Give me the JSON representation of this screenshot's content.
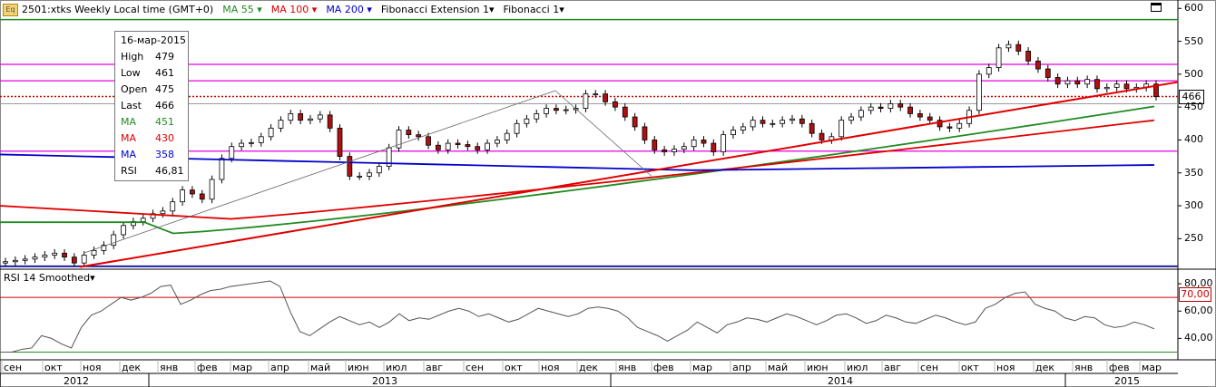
{
  "header": {
    "icon_label": "Eq",
    "instrument": "2501:xtks Weekly Local time (GMT+0)",
    "ma55": "MA 55",
    "ma100": "MA 100",
    "ma200": "MA 200",
    "fib_ext": "Fibonacci Extension 1",
    "fib": "Fibonacci 1"
  },
  "colors": {
    "ma55": "#228b22",
    "ma100": "#e00000",
    "ma200": "#0000cc",
    "trend": "#e00000",
    "fib_magenta": "#e000e0",
    "rsi_line": "#555555"
  },
  "tooltip": {
    "date": "16-мар-2015",
    "rows": [
      {
        "label": "High",
        "value": "479",
        "color": "#000000"
      },
      {
        "label": "Low",
        "value": "461",
        "color": "#000000"
      },
      {
        "label": "Open",
        "value": "475",
        "color": "#000000"
      },
      {
        "label": "Last",
        "value": "466",
        "color": "#000000"
      },
      {
        "label": "MA",
        "value": "451",
        "color": "#228b22"
      },
      {
        "label": "MA",
        "value": "430",
        "color": "#e00000"
      },
      {
        "label": "MA",
        "value": "358",
        "color": "#0000cc"
      },
      {
        "label": "RSI",
        "value": "46,81",
        "color": "#000000"
      }
    ]
  },
  "rsi_panel": {
    "label": "RSI 14 Smoothed",
    "ticks": [
      "80,00",
      "60,00",
      "40,00"
    ],
    "level_tag": "70,00"
  },
  "price_tag": "466",
  "chart_data": {
    "type": "candlestick",
    "title": "2501:xtks Weekly Local time (GMT+0)",
    "ylim": [
      205,
      610
    ],
    "y_ticks": [
      250,
      300,
      350,
      400,
      450,
      500,
      550,
      600
    ],
    "x_labels": [
      "сен",
      "окт",
      "ноя",
      "дек",
      "янв",
      "фев",
      "мар",
      "апр",
      "май",
      "июн",
      "июл",
      "авг",
      "сен",
      "окт",
      "ноя",
      "дек",
      "янв",
      "фев",
      "мар",
      "апр",
      "май",
      "июн",
      "июл",
      "авг",
      "сен",
      "окт",
      "ноя",
      "дек",
      "янв",
      "фев",
      "мар"
    ],
    "years": [
      "2012",
      "2013",
      "2014",
      "2015"
    ],
    "closes": [
      215,
      217,
      219,
      222,
      225,
      228,
      222,
      213,
      225,
      232,
      240,
      256,
      270,
      276,
      281,
      288,
      292,
      306,
      324,
      318,
      310,
      340,
      372,
      390,
      395,
      396,
      405,
      418,
      430,
      440,
      430,
      432,
      438,
      418,
      375,
      345,
      345,
      350,
      360,
      388,
      415,
      408,
      405,
      392,
      385,
      395,
      393,
      390,
      385,
      395,
      400,
      410,
      425,
      432,
      440,
      448,
      445,
      446,
      448,
      470,
      470,
      458,
      450,
      435,
      420,
      400,
      385,
      382,
      386,
      390,
      400,
      395,
      382,
      408,
      415,
      420,
      430,
      425,
      425,
      430,
      432,
      425,
      410,
      400,
      405,
      430,
      435,
      445,
      450,
      448,
      455,
      450,
      440,
      435,
      430,
      420,
      418,
      425,
      445,
      500,
      510,
      540,
      545,
      535,
      520,
      508,
      495,
      485,
      490,
      485,
      492,
      478,
      480,
      485,
      478,
      480,
      485,
      466
    ],
    "horizontal_levels": {
      "green": 583,
      "magenta": [
        515,
        490,
        383
      ],
      "blue": 208,
      "dotted_red": 466
    },
    "ma55": {
      "start": 275,
      "end": 451
    },
    "ma100": {
      "start": 300,
      "end": 430
    },
    "ma200": {
      "start": 378,
      "end": 358
    },
    "rsi": [
      30,
      30,
      32,
      33,
      42,
      40,
      36,
      33,
      48,
      57,
      60,
      65,
      70,
      68,
      70,
      73,
      78,
      79,
      65,
      68,
      72,
      75,
      76,
      78,
      79,
      80,
      81,
      82,
      78,
      60,
      45,
      42,
      47,
      52,
      56,
      53,
      50,
      52,
      48,
      52,
      58,
      53,
      55,
      54,
      57,
      60,
      62,
      60,
      56,
      58,
      55,
      52,
      54,
      58,
      62,
      60,
      58,
      56,
      58,
      62,
      63,
      62,
      60,
      55,
      48,
      45,
      42,
      38,
      42,
      46,
      52,
      48,
      44,
      50,
      52,
      55,
      54,
      52,
      55,
      58,
      56,
      53,
      50,
      53,
      57,
      58,
      55,
      51,
      53,
      57,
      55,
      52,
      51,
      54,
      57,
      55,
      52,
      50,
      52,
      62,
      65,
      70,
      73,
      74,
      65,
      62,
      60,
      55,
      53,
      56,
      55,
      50,
      48,
      49,
      52,
      50,
      47
    ]
  }
}
